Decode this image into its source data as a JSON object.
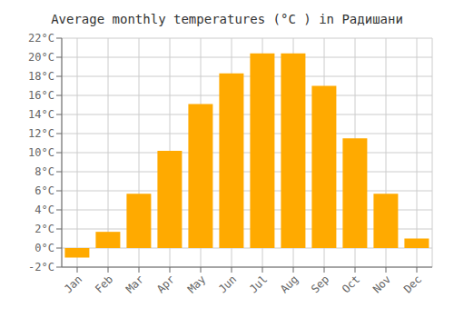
{
  "chart_data": {
    "type": "bar",
    "title": "Average monthly temperatures (°C ) in Радишани",
    "categories": [
      "Jan",
      "Feb",
      "Mar",
      "Apr",
      "May",
      "Jun",
      "Jul",
      "Aug",
      "Sep",
      "Oct",
      "Nov",
      "Dec"
    ],
    "values": [
      -1.0,
      1.7,
      5.7,
      10.2,
      15.1,
      18.3,
      20.4,
      20.4,
      17.0,
      11.5,
      5.7,
      1.0
    ],
    "color": "#FFAA00",
    "ylim": [
      -2,
      22
    ],
    "yticks": [
      {
        "value": -2,
        "label": "-2°C"
      },
      {
        "value": 0,
        "label": "0°C"
      },
      {
        "value": 2,
        "label": "2°C"
      },
      {
        "value": 4,
        "label": "4°C"
      },
      {
        "value": 6,
        "label": "6°C"
      },
      {
        "value": 8,
        "label": "8°C"
      },
      {
        "value": 10,
        "label": "10°C"
      },
      {
        "value": 12,
        "label": "12°C"
      },
      {
        "value": 14,
        "label": "14°C"
      },
      {
        "value": 16,
        "label": "16°C"
      },
      {
        "value": 18,
        "label": "18°C"
      },
      {
        "value": 20,
        "label": "20°C"
      },
      {
        "value": 22,
        "label": "22°C"
      }
    ],
    "grid": true
  }
}
